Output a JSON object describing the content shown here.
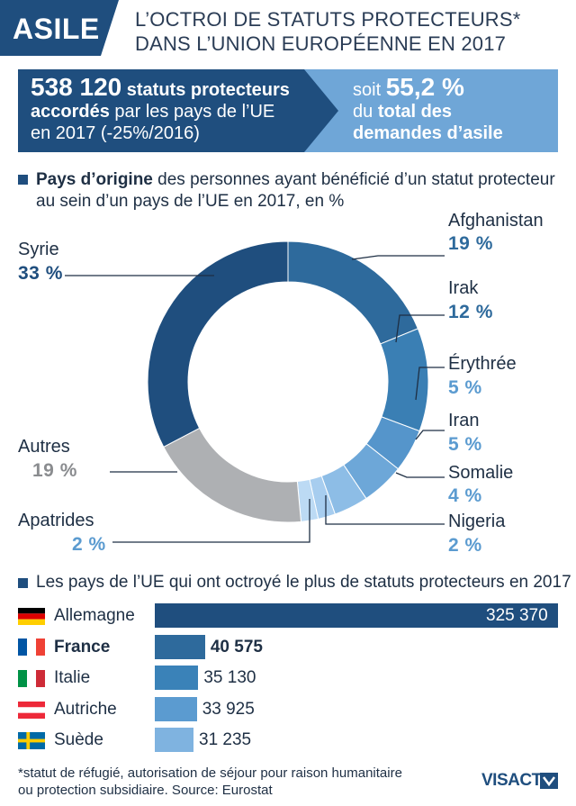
{
  "header": {
    "tag": "ASILE",
    "title_line1": "L’OCTROI DE STATUTS PROTECTEURS*",
    "title_line2": "DANS L’UNION EUROPÉENNE EN 2017"
  },
  "banner": {
    "left": {
      "number": "538 120",
      "text1_bold": " statuts protecteurs",
      "line2_bold": "accordés",
      "line2_rest": " par les pays de l’UE",
      "line3": "en 2017 (-25%/2016)"
    },
    "right": {
      "prefix": "soit ",
      "percent": "55,2 %",
      "line2_plain": "du ",
      "line2_bold": "total des",
      "line3_bold": "demandes d’asile"
    }
  },
  "donut_heading": {
    "bold": "Pays d’origine",
    "rest": " des personnes ayant bénéficié d’un statut protecteur",
    "line2": "au sein d’un pays de l’UE en 2017, en %"
  },
  "chart_data": [
    {
      "type": "pie",
      "title": "Pays d’origine des personnes ayant bénéficié d’un statut protecteur au sein d’un pays de l’UE en 2017, en %",
      "unit": "%",
      "slices": [
        {
          "label": "Afghanistan",
          "value": 19,
          "value_label": "19 %",
          "color": "#2e6a9c"
        },
        {
          "label": "Irak",
          "value": 12,
          "value_label": "12 %",
          "color": "#3a7fb4"
        },
        {
          "label": "Érythrée",
          "value": 5,
          "value_label": "5 %",
          "color": "#5595cb"
        },
        {
          "label": "Iran",
          "value": 5,
          "value_label": "5 %",
          "color": "#6da7d8"
        },
        {
          "label": "Somalie",
          "value": 4,
          "value_label": "4 %",
          "color": "#8dbde6"
        },
        {
          "label": "Nigeria",
          "value": 2,
          "value_label": "2 %",
          "color": "#a7cdef"
        },
        {
          "label": "Apatrides",
          "value": 2,
          "value_label": "2 %",
          "color": "#bcdaf4"
        },
        {
          "label": "Autres",
          "value": 19,
          "value_label": "19 %",
          "color": "#aeb0b3"
        },
        {
          "label": "Syrie",
          "value": 33,
          "value_label": "33 %",
          "color": "#1f4e7e"
        }
      ]
    },
    {
      "type": "bar",
      "orientation": "horizontal",
      "title": "Les pays de l’UE qui ont octroyé le plus de statuts protecteurs en 2017",
      "categories": [
        "Allemagne",
        "France",
        "Italie",
        "Autriche",
        "Suède"
      ],
      "values": [
        325370,
        40575,
        35130,
        33925,
        31235
      ],
      "value_labels": [
        "325 370",
        "40 575",
        "35 130",
        "33 925",
        "31 235"
      ],
      "colors": [
        "#1f4e7e",
        "#2e6a9c",
        "#3a82b8",
        "#5b9bd0",
        "#7fb3e0"
      ]
    }
  ],
  "bars_heading": "Les pays de l’UE qui ont octroyé le plus de statuts protecteurs en 2017",
  "footnote": {
    "line1": "*statut de réfugié, autorisation de séjour pour raison humanitaire",
    "line2": "ou protection subsidiaire. Source: Eurostat"
  },
  "logo": "VISACTU",
  "colors": {
    "navy": "#1f4e7e",
    "banner_light": "#6fa6d7",
    "label_blue_dark": "#2e6a9c",
    "label_blue_light": "#5b9bd0",
    "label_grey": "#8a8c8f"
  }
}
